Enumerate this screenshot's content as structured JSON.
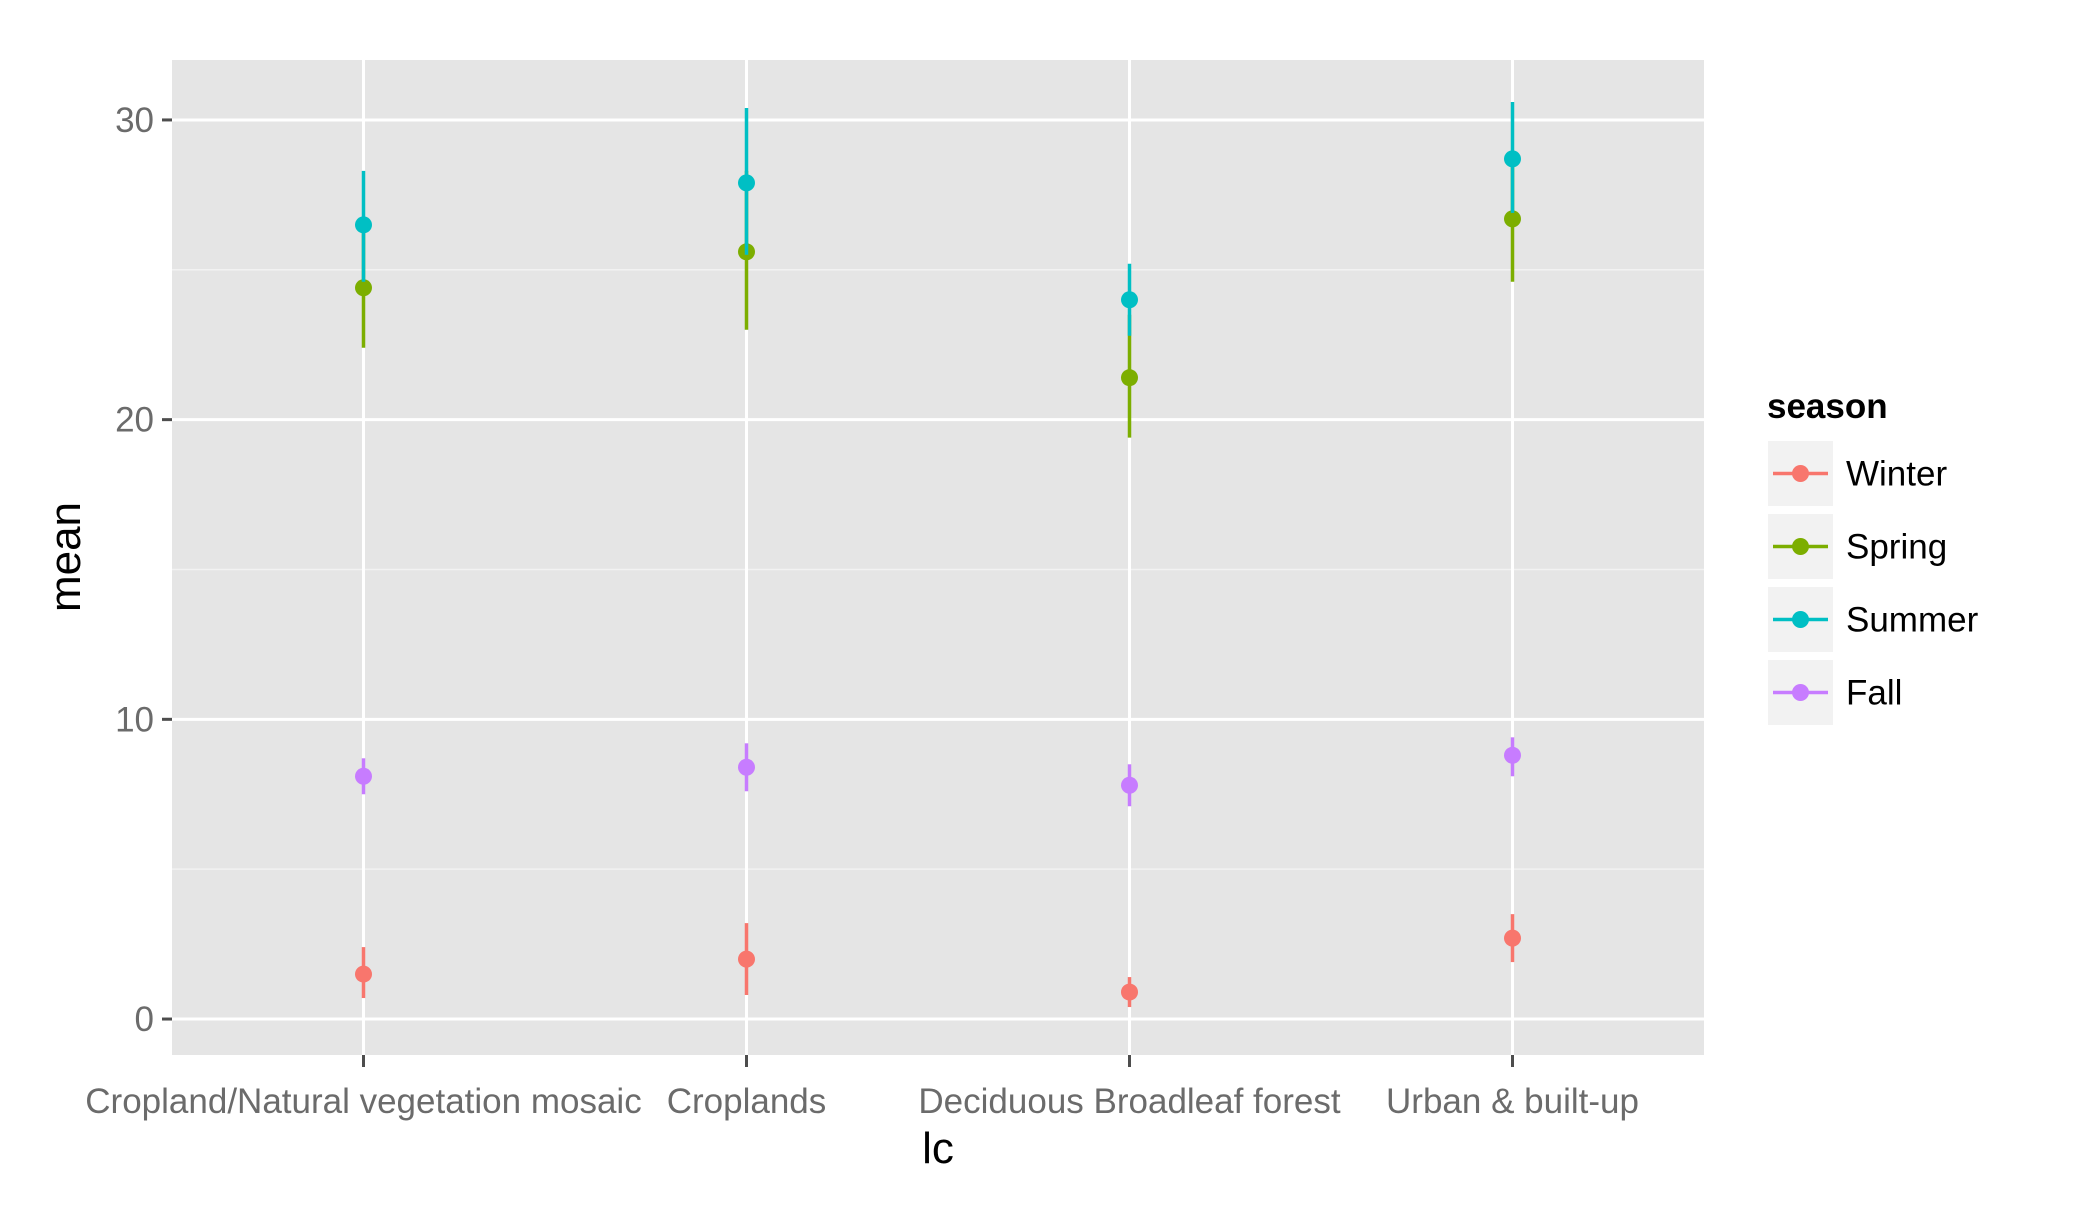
{
  "chart_data": {
    "type": "scatter",
    "subtype": "point-with-errorbars",
    "xlabel": "lc",
    "ylabel": "mean",
    "categories": [
      "Cropland/Natural vegetation mosaic",
      "Croplands",
      "Deciduous Broadleaf forest",
      "Urban & built-up"
    ],
    "ylim": [
      -1.2,
      32
    ],
    "yticks": [
      0,
      10,
      20,
      30
    ],
    "grid": true,
    "legend": {
      "title": "season",
      "position": "right"
    },
    "series": [
      {
        "name": "Winter",
        "color": "#F8766D",
        "values": [
          1.5,
          2.0,
          0.9,
          2.7
        ],
        "lower": [
          0.7,
          0.8,
          0.4,
          1.9
        ],
        "upper": [
          2.4,
          3.2,
          1.4,
          3.5
        ]
      },
      {
        "name": "Spring",
        "color": "#7CAE00",
        "values": [
          24.4,
          25.6,
          21.4,
          26.7
        ],
        "lower": [
          22.4,
          23.0,
          19.4,
          24.6
        ],
        "upper": [
          26.4,
          28.3,
          23.5,
          28.8
        ]
      },
      {
        "name": "Summer",
        "color": "#00BFC4",
        "values": [
          26.5,
          27.9,
          24.0,
          28.7
        ],
        "lower": [
          24.6,
          25.5,
          22.8,
          26.9
        ],
        "upper": [
          28.3,
          30.4,
          25.2,
          30.6
        ]
      },
      {
        "name": "Fall",
        "color": "#C77CFF",
        "values": [
          8.1,
          8.4,
          7.8,
          8.8
        ],
        "lower": [
          7.5,
          7.6,
          7.1,
          8.1
        ],
        "upper": [
          8.7,
          9.2,
          8.5,
          9.4
        ]
      }
    ]
  }
}
